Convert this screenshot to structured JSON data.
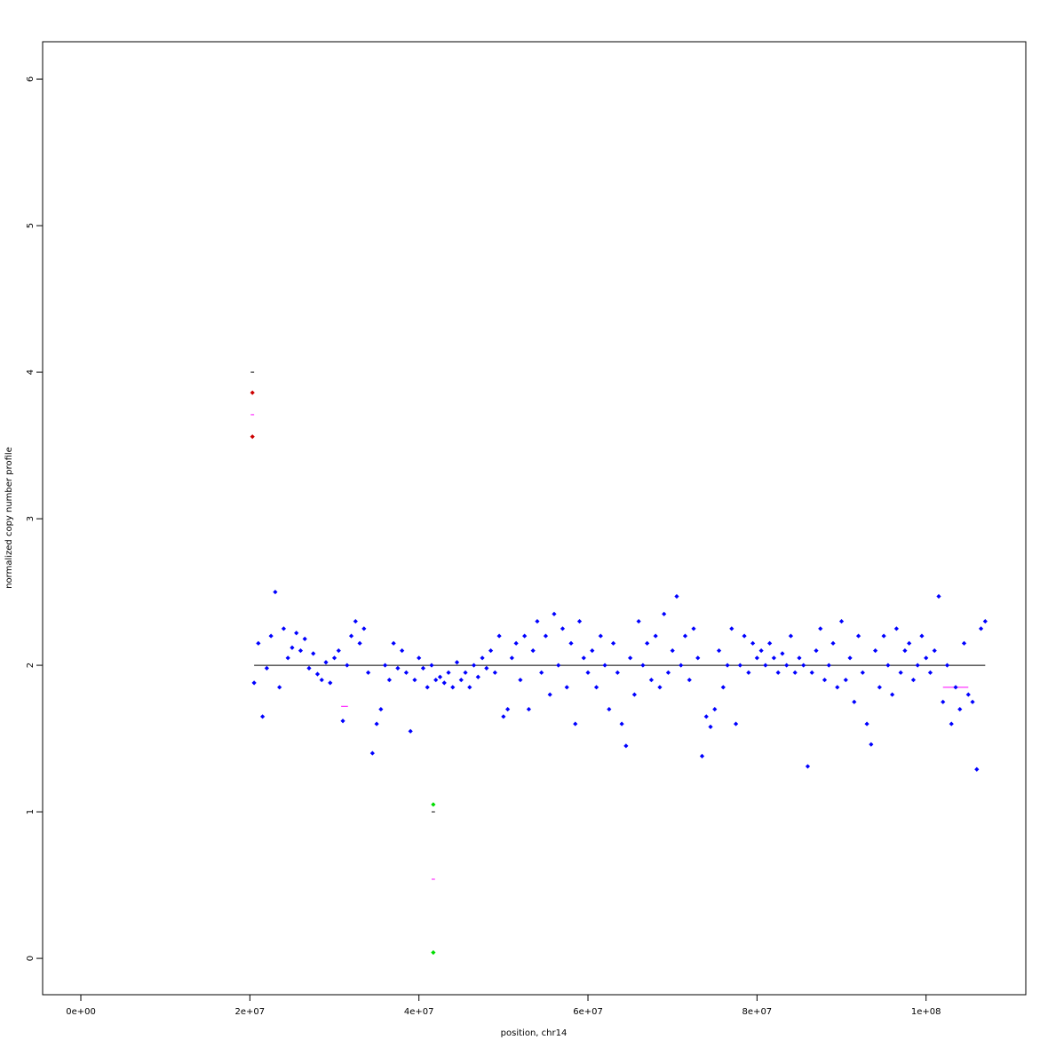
{
  "chart_data": {
    "type": "scatter",
    "xlabel": "position, chr14",
    "ylabel": "normalized copy number profile",
    "xlim": [
      -4520000,
      111800000
    ],
    "ylim": [
      -0.248,
      6.255
    ],
    "xticks": [
      {
        "value": 0,
        "label": "0e+00"
      },
      {
        "value": 20000000,
        "label": "2e+07"
      },
      {
        "value": 40000000,
        "label": "4e+07"
      },
      {
        "value": 60000000,
        "label": "6e+07"
      },
      {
        "value": 80000000,
        "label": "8e+07"
      },
      {
        "value": 100000000,
        "label": "1e+08"
      }
    ],
    "yticks": [
      0,
      1,
      2,
      3,
      4,
      5,
      6
    ],
    "series": [
      {
        "color": "#0000ff",
        "x": [
          20500000,
          21000000,
          21500000,
          22000000,
          22500000,
          23000000,
          23500000,
          24000000,
          24500000,
          25000000,
          25500000,
          26000000,
          26500000,
          27000000,
          27500000,
          28000000,
          28500000,
          29000000,
          29500000,
          30000000,
          30500000,
          31000000,
          31500000,
          32000000,
          32500000,
          33000000,
          33500000,
          34000000,
          34500000,
          35000000,
          35500000,
          36000000,
          36500000,
          37000000,
          37500000,
          38000000,
          38500000,
          39000000,
          39500000,
          40000000,
          40500000,
          41000000,
          41500000,
          42000000,
          42500000,
          43000000,
          43500000,
          44000000,
          44500000,
          45000000,
          45500000,
          46000000,
          46500000,
          47000000,
          47500000,
          48000000,
          48500000,
          49000000,
          49500000,
          50000000,
          50500000,
          51000000,
          51500000,
          52000000,
          52500000,
          53000000,
          53500000,
          54000000,
          54500000,
          55000000,
          55500000,
          56000000,
          56500000,
          57000000,
          57500000,
          58000000,
          58500000,
          59000000,
          59500000,
          60000000,
          60500000,
          61000000,
          61500000,
          62000000,
          62500000,
          63000000,
          63500000,
          64000000,
          64500000,
          65000000,
          65500000,
          66000000,
          66500000,
          67000000,
          67500000,
          68000000,
          68500000,
          69000000,
          69500000,
          70000000,
          70500000,
          71000000,
          71500000,
          72000000,
          72500000,
          73000000,
          73500000,
          74000000,
          74500000,
          75000000,
          75500000,
          76000000,
          76500000,
          77000000,
          77500000,
          78000000,
          78500000,
          79000000,
          79500000,
          80000000,
          80500000,
          81000000,
          81500000,
          82000000,
          82500000,
          83000000,
          83500000,
          84000000,
          84500000,
          85000000,
          85500000,
          86000000,
          86500000,
          87000000,
          87500000,
          88000000,
          88500000,
          89000000,
          89500000,
          90000000,
          90500000,
          91000000,
          91500000,
          92000000,
          92500000,
          93000000,
          93500000,
          94000000,
          94500000,
          95000000,
          95500000,
          96000000,
          96500000,
          97000000,
          97500000,
          98000000,
          98500000,
          99000000,
          99500000,
          100000000,
          100500000,
          101000000,
          101500000,
          102000000,
          102500000,
          103000000,
          103500000,
          104000000,
          104500000,
          105000000,
          105500000,
          106000000,
          106500000,
          107000000
        ],
        "values": [
          1.88,
          2.15,
          1.65,
          1.98,
          2.2,
          2.5,
          1.85,
          2.25,
          2.05,
          2.12,
          2.22,
          2.1,
          2.18,
          1.98,
          2.08,
          1.94,
          1.9,
          2.02,
          1.88,
          2.05,
          2.1,
          1.62,
          2.0,
          2.2,
          2.3,
          2.15,
          2.25,
          1.95,
          1.4,
          1.6,
          1.7,
          2.0,
          1.9,
          2.15,
          1.98,
          2.1,
          1.95,
          1.55,
          1.9,
          2.05,
          1.98,
          1.85,
          2.0,
          1.9,
          1.92,
          1.88,
          1.95,
          1.85,
          2.02,
          1.9,
          1.95,
          1.85,
          2.0,
          1.92,
          2.05,
          1.98,
          2.1,
          1.95,
          2.2,
          1.65,
          1.7,
          2.05,
          2.15,
          1.9,
          2.2,
          1.7,
          2.1,
          2.3,
          1.95,
          2.2,
          1.8,
          2.35,
          2.0,
          2.25,
          1.85,
          2.15,
          1.6,
          2.3,
          2.05,
          1.95,
          2.1,
          1.85,
          2.2,
          2.0,
          1.7,
          2.15,
          1.95,
          1.6,
          1.45,
          2.05,
          1.8,
          2.3,
          2.0,
          2.15,
          1.9,
          2.2,
          1.85,
          2.35,
          1.95,
          2.1,
          2.47,
          2.0,
          2.2,
          1.9,
          2.25,
          2.05,
          1.38,
          1.65,
          1.58,
          1.7,
          2.1,
          1.85,
          2.0,
          2.25,
          1.6,
          2.0,
          2.2,
          1.95,
          2.15,
          2.05,
          2.1,
          2.0,
          2.15,
          2.05,
          1.95,
          2.08,
          2.0,
          2.2,
          1.95,
          2.05,
          2.0,
          1.31,
          1.95,
          2.1,
          2.25,
          1.9,
          2.0,
          2.15,
          1.85,
          2.3,
          1.9,
          2.05,
          1.75,
          2.2,
          1.95,
          1.6,
          1.46,
          2.1,
          1.85,
          2.2,
          2.0,
          1.8,
          2.25,
          1.95,
          2.1,
          2.15,
          1.9,
          2.0,
          2.2,
          2.05,
          1.95,
          2.1,
          2.47,
          1.75,
          2.0,
          1.6,
          1.85,
          1.7,
          2.15,
          1.8,
          1.75,
          1.29,
          2.25,
          2.3
        ]
      },
      {
        "color": "#cc0000",
        "x": [
          20300000,
          20300000
        ],
        "values": [
          3.86,
          3.56
        ]
      },
      {
        "color": "#00dd00",
        "x": [
          41700000,
          41700000
        ],
        "values": [
          1.05,
          0.04
        ]
      }
    ],
    "segments": [
      {
        "color": "#000000",
        "x0": 20500000,
        "x1": 107000000,
        "y": 2
      },
      {
        "color": "#000000",
        "x0": 20100000,
        "x1": 20500000,
        "y": 4
      },
      {
        "color": "#000000",
        "x0": 41500000,
        "x1": 41900000,
        "y": 1
      },
      {
        "color": "#ff00ff",
        "x0": 20100000,
        "x1": 20500000,
        "y": 3.71
      },
      {
        "color": "#ff00ff",
        "x0": 41500000,
        "x1": 41900000,
        "y": 0.54
      },
      {
        "color": "#ff00ff",
        "x0": 30800000,
        "x1": 31600000,
        "y": 1.72
      },
      {
        "color": "#ff00ff",
        "x0": 102000000,
        "x1": 105000000,
        "y": 1.85
      }
    ]
  }
}
